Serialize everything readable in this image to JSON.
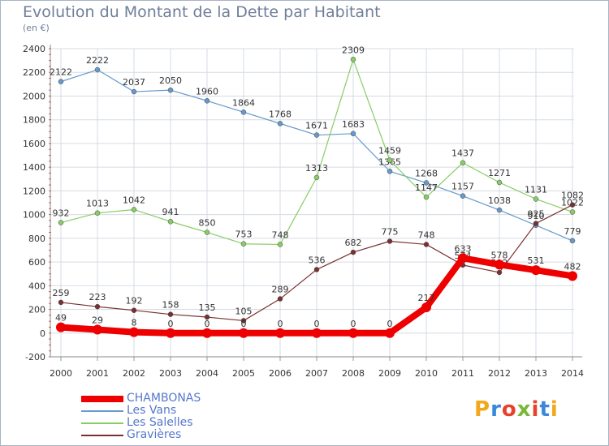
{
  "header": {
    "title": "Evolution du Montant de la Dette par Habitant",
    "unit": "(en €)"
  },
  "logo": {
    "text": "Proxiti"
  },
  "chart_data": {
    "type": "line",
    "title": "Evolution du Montant de la Dette par Habitant",
    "ylabel": "(en €)",
    "x": [
      "2000",
      "2001",
      "2002",
      "2003",
      "2004",
      "2005",
      "2006",
      "2007",
      "2008",
      "2009",
      "2010",
      "2011",
      "2012",
      "2013",
      "2014"
    ],
    "ylim": [
      -200,
      2400
    ],
    "yticks": [
      -200,
      0,
      200,
      400,
      600,
      800,
      1000,
      1200,
      1400,
      1600,
      1800,
      2000,
      2200,
      2400
    ],
    "grid": true,
    "legend": "bottom-left",
    "series": [
      {
        "name": "CHAMBONAS",
        "color": "#ee0000",
        "values": [
          49,
          29,
          8,
          0,
          0,
          0,
          0,
          0,
          0,
          0,
          217,
          633,
          578,
          531,
          482
        ]
      },
      {
        "name": "Les Vans",
        "color": "#6699cc",
        "values": [
          2122,
          2222,
          2037,
          2050,
          1960,
          1864,
          1768,
          1671,
          1683,
          1365,
          1268,
          1157,
          1038,
          910,
          779
        ]
      },
      {
        "name": "Les Salelles",
        "color": "#88cc66",
        "values": [
          932,
          1013,
          1042,
          941,
          850,
          753,
          748,
          1313,
          2309,
          1459,
          1147,
          1437,
          1271,
          1131,
          1022
        ]
      },
      {
        "name": "Gravières",
        "color": "#7a3030",
        "values": [
          259,
          223,
          192,
          158,
          135,
          105,
          289,
          536,
          682,
          775,
          748,
          574,
          512,
          925,
          1082
        ]
      }
    ]
  }
}
